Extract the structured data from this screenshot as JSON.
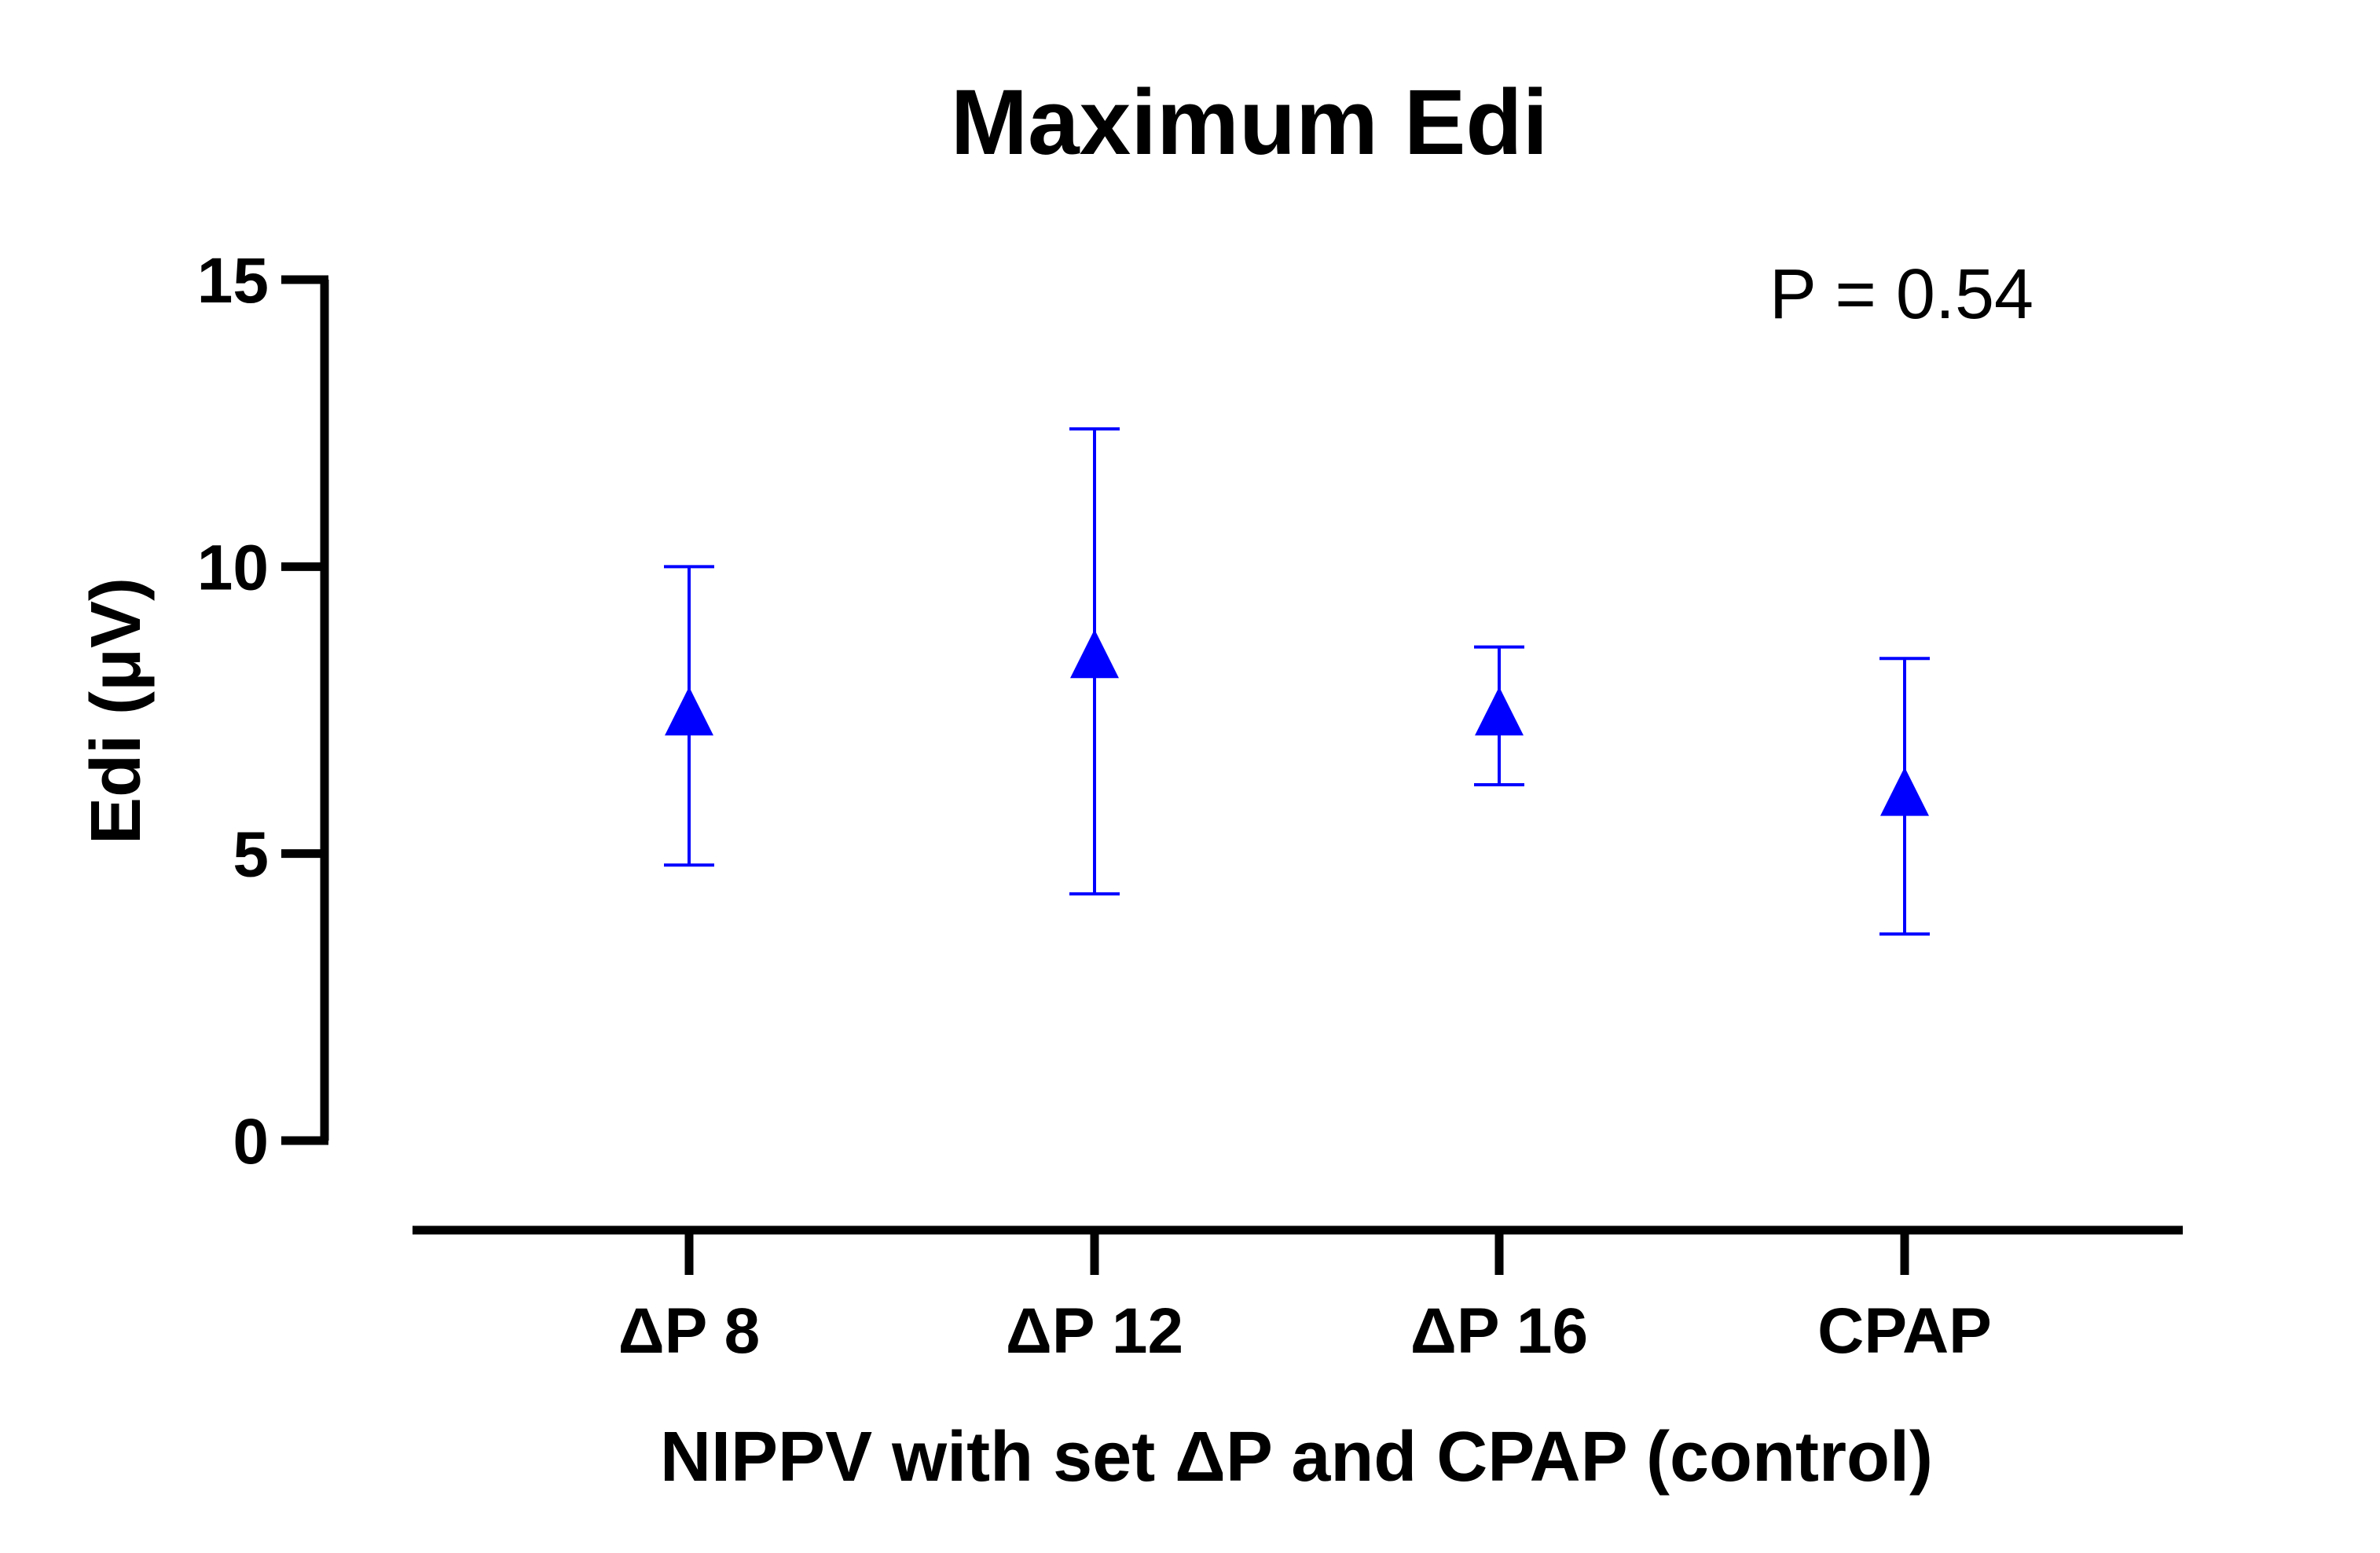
{
  "chart_data": {
    "type": "scatter",
    "title": "Maximum Edi",
    "xlabel": "NIPPV with set ΔP and CPAP (control)",
    "ylabel": "Edi (μV)",
    "categories": [
      "ΔP 8",
      "ΔP 12",
      "ΔP 16",
      "CPAP"
    ],
    "yticks": [
      "0",
      "5",
      "10",
      "15"
    ],
    "ylim": [
      0,
      15
    ],
    "grid": false,
    "legend": "none",
    "series": [
      {
        "marker": "triangle",
        "color": "#0000ff",
        "points": [
          {
            "category": "ΔP 8",
            "value": 7.4,
            "lower": 4.8,
            "upper": 10.0
          },
          {
            "category": "ΔP 12",
            "value": 8.4,
            "lower": 4.3,
            "upper": 12.4
          },
          {
            "category": "ΔP 16",
            "value": 7.4,
            "lower": 6.2,
            "upper": 8.6
          },
          {
            "category": "CPAP",
            "value": 6.0,
            "lower": 3.6,
            "upper": 8.4
          }
        ]
      }
    ],
    "annotations": [
      "P = 0.54"
    ]
  }
}
